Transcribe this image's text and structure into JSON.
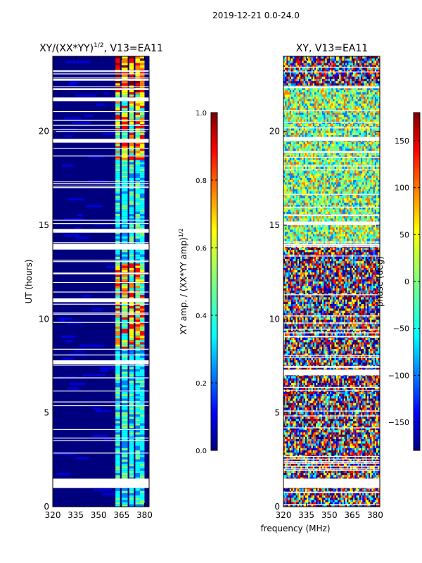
{
  "figure": {
    "suptitle": "2019-12-21 0.0-24.0",
    "shared_xlabel": "frequency (MHz)"
  },
  "colors": {
    "jet": [
      "#00007f",
      "#0000ff",
      "#007fff",
      "#00ffff",
      "#7fff7f",
      "#ffff00",
      "#ff7f00",
      "#ff0000",
      "#7f0000"
    ],
    "background": "#00007f",
    "gap": "#ffffff"
  },
  "chart_data": [
    {
      "type": "heatmap",
      "title_main": "XY/(XX*YY)",
      "title_sup": "1/2",
      "title_rest": ", V13=EA11",
      "xlabel": "",
      "ylabel": "UT (hours)",
      "xlim": [
        320,
        383
      ],
      "ylim": [
        0,
        24
      ],
      "xticks": [
        320,
        335,
        350,
        365,
        380
      ],
      "yticks": [
        0,
        5,
        10,
        15,
        20
      ],
      "bright_channel_bands_mhz": [
        [
          361,
          364
        ],
        [
          365,
          369
        ],
        [
          370,
          373
        ],
        [
          374,
          377
        ],
        [
          377,
          380
        ]
      ],
      "data_gaps_ut_hours": [
        [
          1.0,
          1.5
        ],
        [
          7.6,
          7.8
        ],
        [
          10.9,
          11.1
        ],
        [
          13.7,
          14.0
        ],
        [
          14.6,
          14.8
        ],
        [
          19.4,
          19.6
        ],
        [
          21.6,
          21.8
        ],
        [
          22.2,
          22.3
        ],
        [
          22.7,
          22.8
        ]
      ],
      "colorbar": {
        "label_main": "XY amp. / (XX*YY amp)",
        "label_sup": "1/2",
        "range": [
          0.0,
          1.0
        ],
        "ticks": [
          "0.0",
          "0.2",
          "0.4",
          "0.6",
          "0.8",
          "1.0"
        ],
        "tick_values": [
          0.0,
          0.2,
          0.4,
          0.6,
          0.8,
          1.0
        ]
      }
    },
    {
      "type": "heatmap",
      "title": "XY, V13=EA11",
      "xlabel": "frequency (MHz)",
      "ylabel": "",
      "xlim": [
        320,
        383
      ],
      "ylim": [
        0,
        24
      ],
      "xticks": [
        320,
        335,
        350,
        365,
        380
      ],
      "yticks": [
        0,
        5,
        10,
        15,
        20
      ],
      "data_gaps_ut_hours": [
        [
          1.0,
          1.5
        ],
        [
          7.0,
          7.3
        ],
        [
          13.9,
          14.0
        ],
        [
          15.0,
          15.2
        ],
        [
          19.5,
          19.7
        ],
        [
          22.3,
          22.4
        ]
      ],
      "colorbar": {
        "label": "phase (deg)",
        "range": [
          -180,
          180
        ],
        "ticks": [
          "−150",
          "−100",
          "−50",
          "0",
          "50",
          "100",
          "150"
        ],
        "tick_values": [
          -150,
          -100,
          -50,
          0,
          50,
          100,
          150
        ]
      }
    }
  ]
}
